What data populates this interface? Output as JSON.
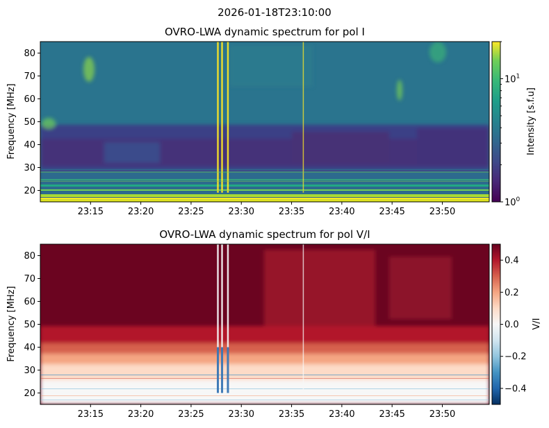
{
  "suptitle": "2026-01-18T23:10:00",
  "chart_data": [
    {
      "type": "heatmap",
      "title": "OVRO-LWA dynamic spectrum for pol I",
      "xlabel": "",
      "ylabel": "Frequency [MHz]",
      "x_ticks": [
        "23:15",
        "23:20",
        "23:25",
        "23:30",
        "23:35",
        "23:40",
        "23:45",
        "23:50"
      ],
      "x_range": [
        "23:10:00",
        "23:54:40"
      ],
      "y_ticks": [
        20,
        30,
        40,
        50,
        60,
        70,
        80
      ],
      "ylim": [
        15,
        85
      ],
      "colorbar": {
        "label": "Intensity [s.f.u]",
        "scale": "log",
        "tick_labels": [
          "10^0",
          "10^1"
        ],
        "range": [
          1,
          20
        ],
        "colormap": "viridis"
      },
      "features": {
        "burst_times": [
          "23:27:40",
          "23:28:05",
          "23:28:40",
          "23:36:10"
        ],
        "interference_bands_mhz": [
          16,
          18,
          20,
          24,
          28
        ]
      }
    },
    {
      "type": "heatmap",
      "title": "OVRO-LWA dynamic spectrum for pol V/I",
      "xlabel": "",
      "ylabel": "Frequency [MHz]",
      "x_ticks": [
        "23:15",
        "23:20",
        "23:25",
        "23:30",
        "23:35",
        "23:40",
        "23:45",
        "23:50"
      ],
      "x_range": [
        "23:10:00",
        "23:54:40"
      ],
      "y_ticks": [
        20,
        30,
        40,
        50,
        60,
        70,
        80
      ],
      "ylim": [
        15,
        85
      ],
      "colorbar": {
        "label": "V/I",
        "scale": "linear",
        "tick_labels": [
          "0.4",
          "0.2",
          "0.0",
          "−0.2",
          "−0.4"
        ],
        "range": [
          -0.5,
          0.5
        ],
        "colormap": "RdBu_r"
      },
      "features": {
        "burst_times": [
          "23:27:40",
          "23:28:05",
          "23:28:40",
          "23:36:10"
        ]
      }
    }
  ]
}
